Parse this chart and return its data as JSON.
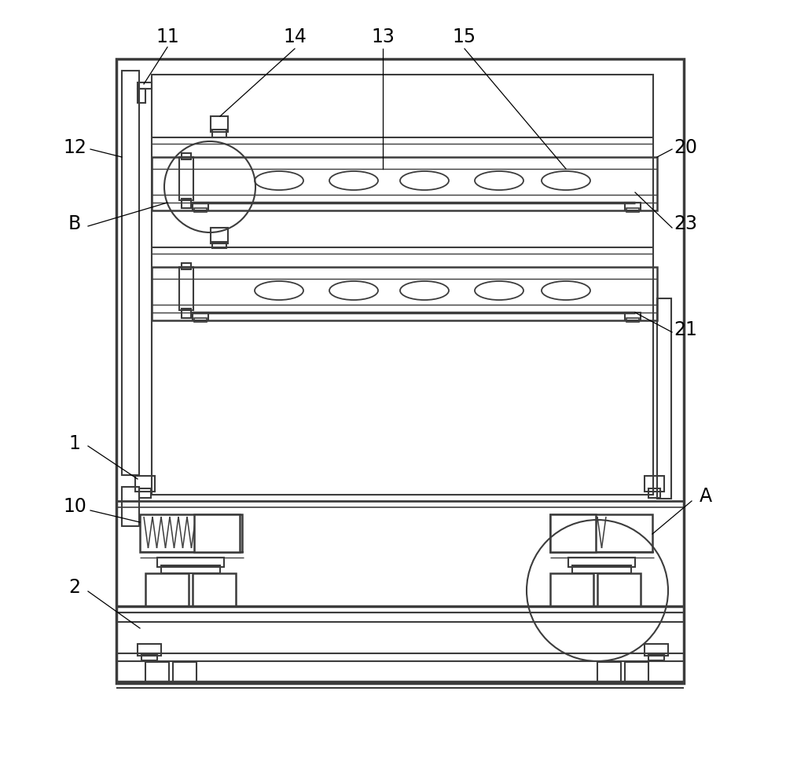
{
  "bg_color": "#ffffff",
  "line_color": "#3c3c3c",
  "label_color": "#000000",
  "fig_w": 10.0,
  "fig_h": 9.64,
  "dpi": 100
}
